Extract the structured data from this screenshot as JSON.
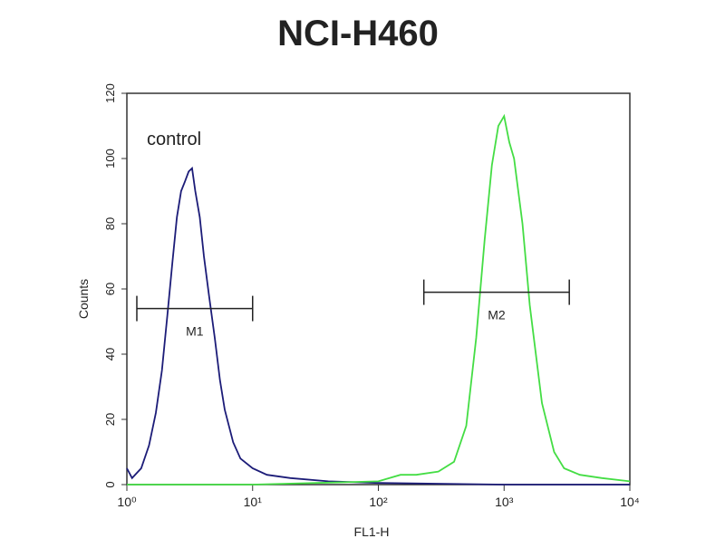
{
  "chart_data": {
    "type": "line",
    "title": "NCI-H460",
    "xlabel": "FL1-H",
    "ylabel": "Counts",
    "xscale": "log",
    "xlim": [
      1,
      10000
    ],
    "ylim": [
      0,
      120
    ],
    "xticks": [
      {
        "value": 1,
        "label": "10⁰"
      },
      {
        "value": 10,
        "label": "10¹"
      },
      {
        "value": 100,
        "label": "10²"
      },
      {
        "value": 1000,
        "label": "10³"
      },
      {
        "value": 10000,
        "label": "10⁴"
      }
    ],
    "yticks": [
      0,
      20,
      40,
      60,
      80,
      100,
      120
    ],
    "series": [
      {
        "name": "control",
        "color": "#1c1c78",
        "x": [
          1,
          1.1,
          1.3,
          1.5,
          1.7,
          1.9,
          2.1,
          2.3,
          2.5,
          2.7,
          2.9,
          3.1,
          3.3,
          3.5,
          3.8,
          4.1,
          4.5,
          5,
          5.5,
          6,
          7,
          8,
          10,
          13,
          20,
          40,
          100,
          1000,
          10000
        ],
        "values": [
          5,
          2,
          5,
          12,
          22,
          35,
          52,
          68,
          82,
          90,
          93,
          96,
          97,
          90,
          82,
          70,
          58,
          45,
          32,
          23,
          13,
          8,
          5,
          3,
          2,
          1,
          0.5,
          0,
          0
        ]
      },
      {
        "color": "#44dd44",
        "x": [
          1,
          10,
          100,
          150,
          200,
          300,
          400,
          500,
          600,
          700,
          800,
          900,
          1000,
          1100,
          1200,
          1400,
          1600,
          2000,
          2500,
          3000,
          4000,
          6000,
          10000
        ],
        "values": [
          0,
          0,
          1,
          3,
          3,
          4,
          7,
          18,
          45,
          75,
          98,
          110,
          113,
          105,
          100,
          80,
          55,
          25,
          10,
          5,
          3,
          2,
          1
        ]
      }
    ],
    "markers": [
      {
        "label": "M1",
        "range": [
          1.2,
          10
        ],
        "y": 54
      },
      {
        "label": "M2",
        "range": [
          230,
          3300
        ],
        "y": 59
      }
    ]
  }
}
